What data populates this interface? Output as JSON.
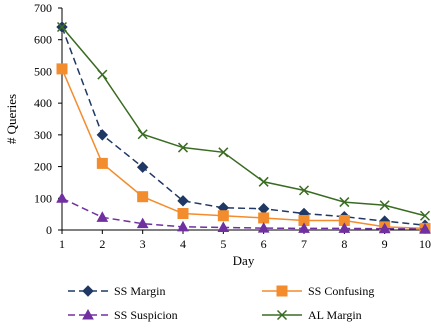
{
  "chart_data": {
    "type": "line",
    "title": "",
    "xlabel": "Day",
    "ylabel": "# Queries",
    "x": [
      1,
      2,
      3,
      4,
      5,
      6,
      7,
      8,
      9,
      10
    ],
    "xlim": [
      1,
      10
    ],
    "ylim": [
      0,
      700
    ],
    "yticks": [
      0,
      100,
      200,
      300,
      400,
      500,
      600,
      700
    ],
    "grid": false,
    "legend_position": "bottom",
    "series": [
      {
        "name": "SS Margin",
        "color": "#1f3864",
        "marker": "diamond",
        "dash": "dashed",
        "values": [
          640,
          300,
          198,
          92,
          70,
          67,
          52,
          42,
          28,
          15
        ]
      },
      {
        "name": "SS Confusing",
        "color": "#f28c2c",
        "marker": "square",
        "dash": "solid",
        "values": [
          508,
          210,
          105,
          52,
          45,
          38,
          30,
          30,
          10,
          5
        ]
      },
      {
        "name": "SS Suspicion",
        "color": "#7030a0",
        "marker": "triangle",
        "dash": "dashed",
        "values": [
          100,
          40,
          20,
          10,
          8,
          6,
          5,
          5,
          4,
          3
        ]
      },
      {
        "name": "AL Margin",
        "color": "#3a6b22",
        "marker": "x",
        "dash": "solid",
        "values": [
          640,
          490,
          302,
          260,
          245,
          152,
          125,
          88,
          78,
          45
        ]
      }
    ]
  }
}
